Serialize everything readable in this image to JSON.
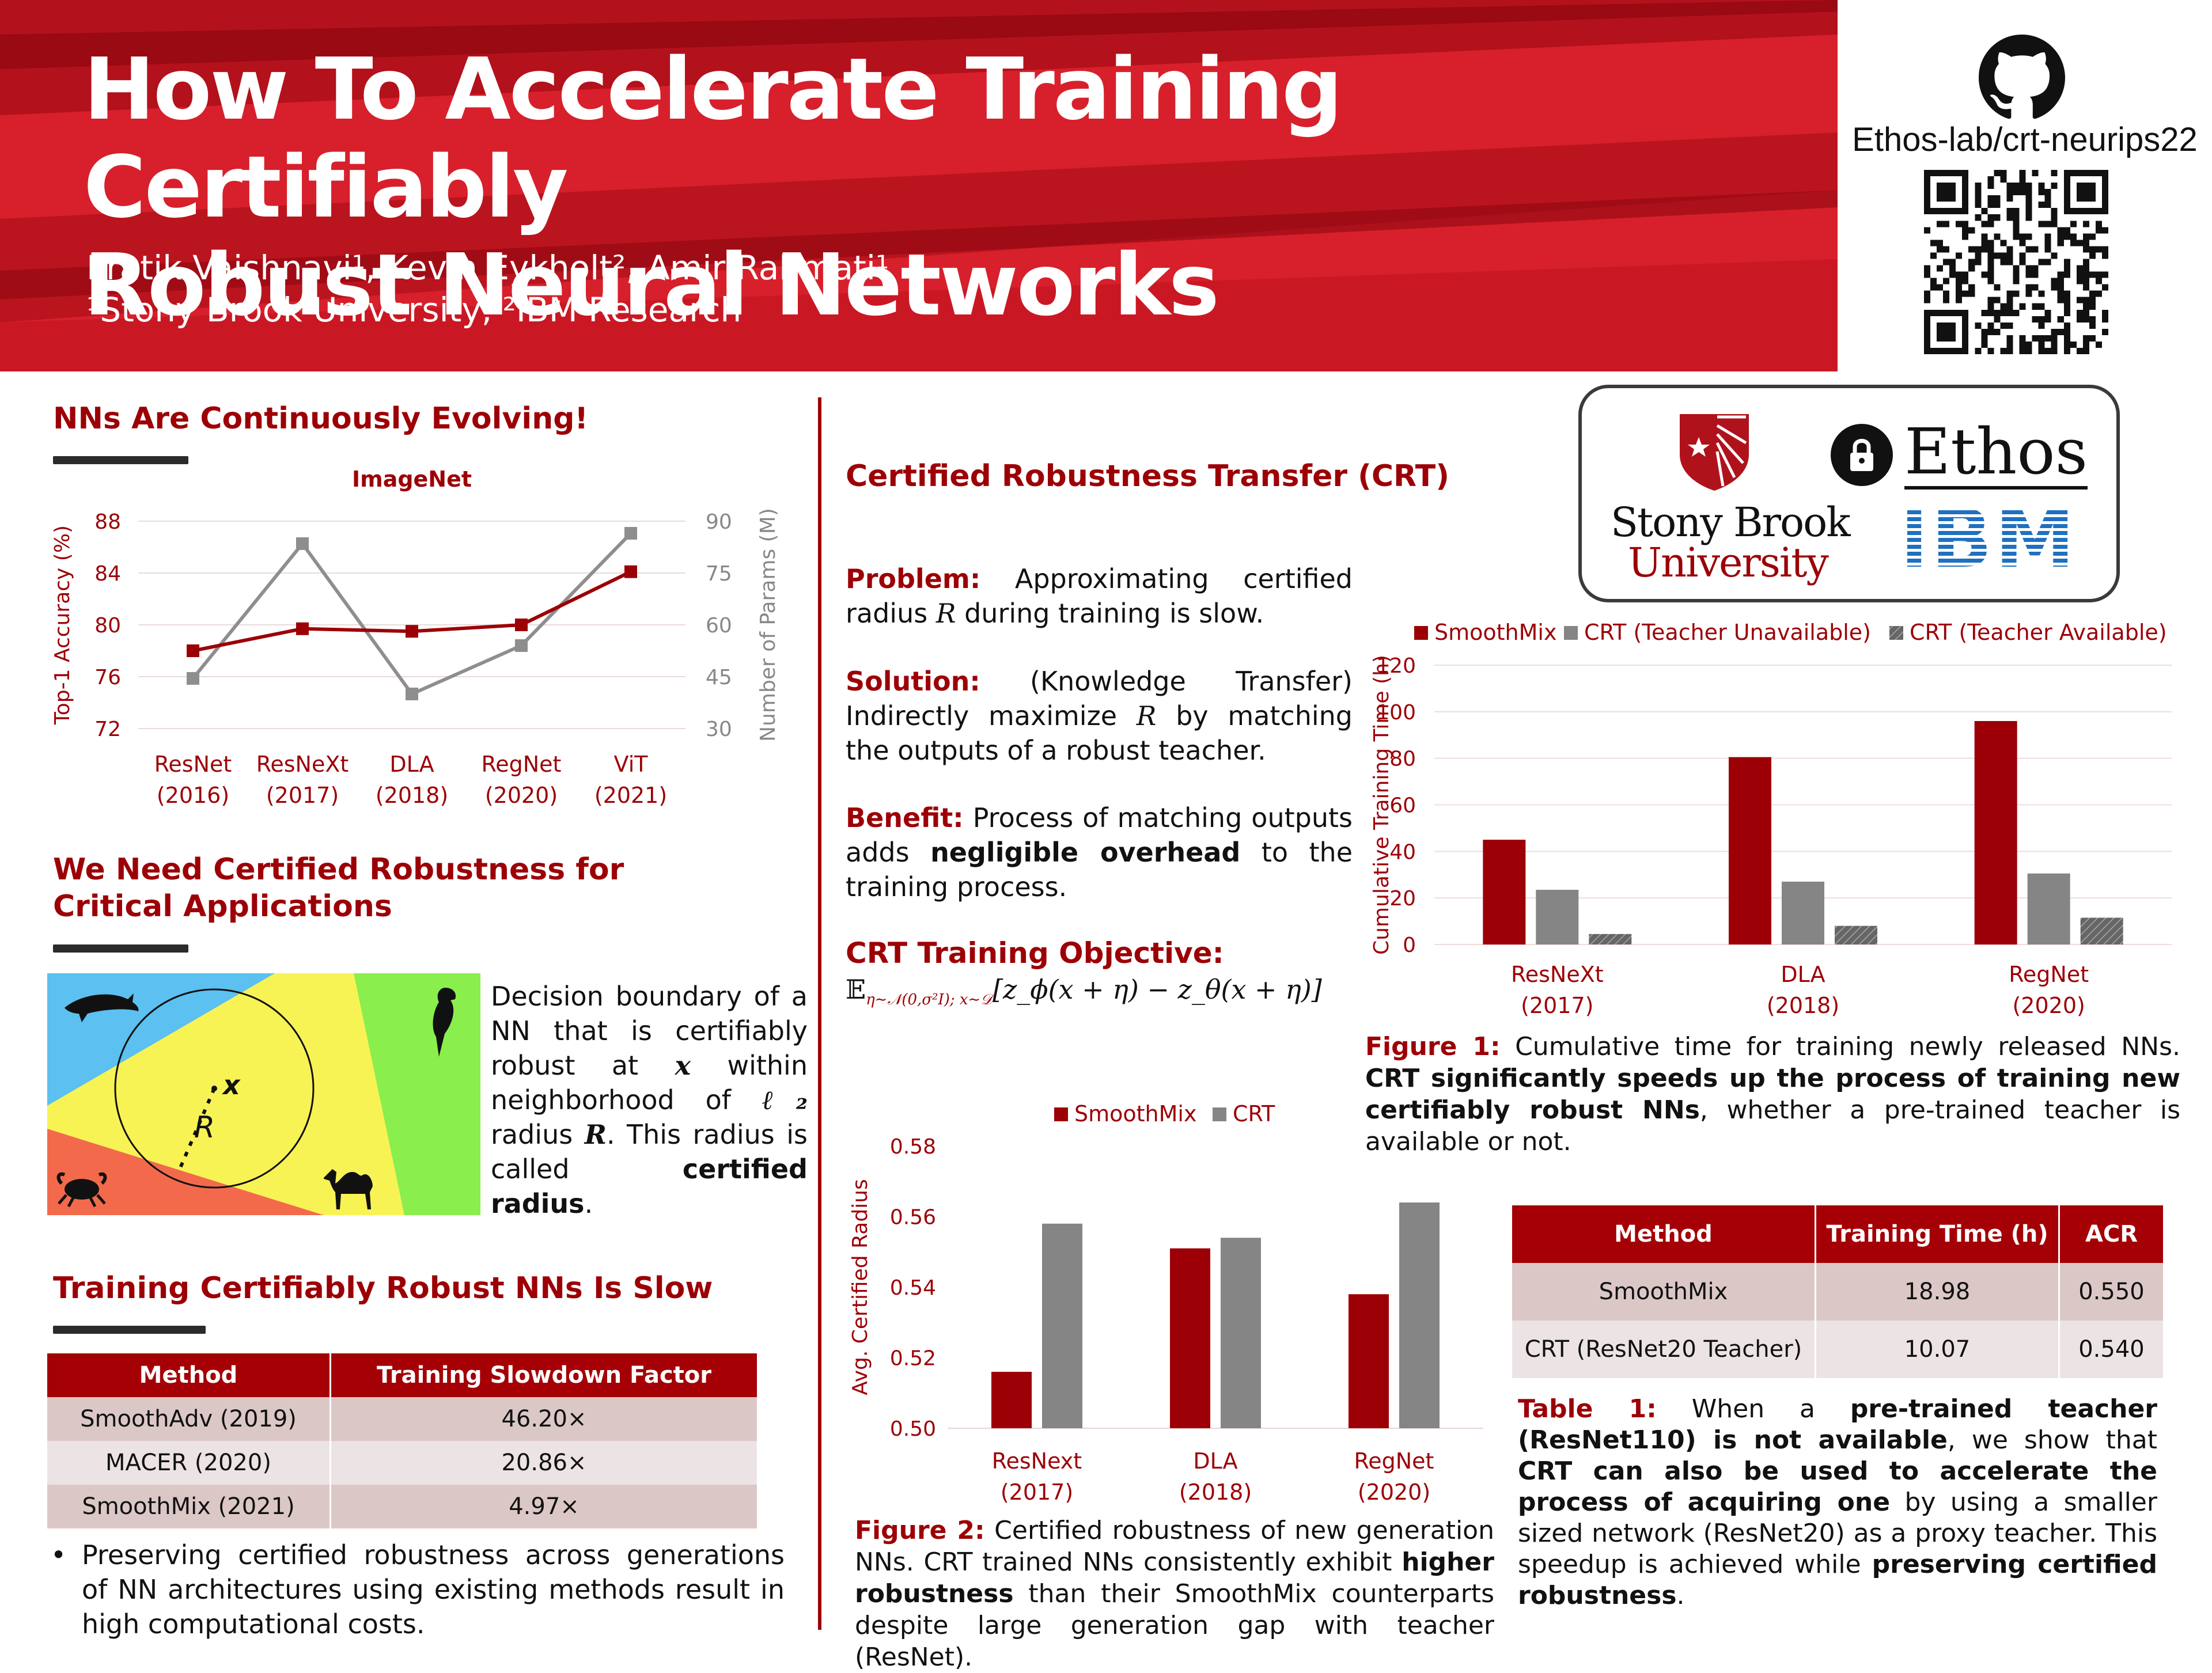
{
  "header": {
    "title_line1": "How To Accelerate Training Certifiably",
    "title_line2": "Robust Neural Networks",
    "authors": "Pratik Vaishnavi¹, Kevin Eykholt², Amir Rahmati¹",
    "affiliations": "¹Stony Brook University, ²IBM Research",
    "repo": "Ethos-lab/crt-neurips22"
  },
  "logos": {
    "stony_brook_line1": "Stony Brook",
    "stony_brook_line2": "University",
    "ethos": "Ethos",
    "ibm": "IBM"
  },
  "colors": {
    "brand_red": "#9c0006",
    "bar_red": "#9c0006",
    "bar_gray": "#858585",
    "dark_gray": "#555555"
  },
  "sec1": {
    "heading": "NNs Are Continuously Evolving!"
  },
  "sec2": {
    "heading_line1": "We Need Certified Robustness for",
    "heading_line2": "Critical Applications",
    "illus_R": "R",
    "illus_x": "x",
    "text_pre": "Decision boundary of a NN that is certifiably robust at",
    "text_x": "x",
    "text_mid": "within neighborhood of",
    "text_l2": "ℓ₂",
    "text_mid2": "radius",
    "text_R": "R",
    "text_post": ". This radius is called",
    "text_bold": "certified radius",
    "text_end": "."
  },
  "sec3": {
    "heading": "Training Certifiably Robust NNs Is Slow",
    "table": {
      "headers": [
        "Method",
        "Training Slowdown Factor"
      ],
      "rows": [
        [
          "SmoothAdv (2019)",
          "46.20×"
        ],
        [
          "MACER (2020)",
          "20.86×"
        ],
        [
          "SmoothMix (2021)",
          "4.97×"
        ]
      ]
    },
    "bullet": "Preserving certified robustness across generations of NN architectures using existing methods result in high computational costs."
  },
  "crt": {
    "heading": "Certified Robustness Transfer (CRT)",
    "problem_label": "Problem:",
    "problem_pre": "Approximating certified radius",
    "problem_R": "R",
    "problem_post": "during training is slow.",
    "solution_label": "Solution:",
    "solution_pre": "(Knowledge Transfer) Indirectly maximize",
    "solution_R": "R",
    "solution_post": "by matching the outputs of a robust teacher.",
    "benefit_label": "Benefit:",
    "benefit_pre": "Process of matching outputs adds",
    "benefit_bold": "negligible overhead",
    "benefit_post": "to the training process.",
    "objective_label": "CRT Training Objective:",
    "objective_E": "𝔼",
    "objective_sub": "η∼𝒩(0,σ²I); x∼𝒟",
    "objective_body": "[z_ϕ(x + η) − z_θ(x + η)]"
  },
  "fig1": {
    "caption_label": "Figure 1:",
    "caption_pre": "Cumulative time for training newly released NNs.",
    "caption_bold": "CRT significantly speeds up the process of training new certifiably robust NNs",
    "caption_post": ", whether a pre-trained teacher is available or not."
  },
  "fig2": {
    "caption_label": "Figure 2:",
    "caption_pre": "Certified robustness of new generation NNs. CRT trained NNs consistently exhibit",
    "caption_bold": "higher robustness",
    "caption_post": "than their SmoothMix counterparts despite large generation gap with teacher (ResNet)."
  },
  "table1": {
    "headers": [
      "Method",
      "Training Time (h)",
      "ACR"
    ],
    "rows": [
      [
        "SmoothMix",
        "18.98",
        "0.550"
      ],
      [
        "CRT (ResNet20 Teacher)",
        "10.07",
        "0.540"
      ]
    ],
    "caption_label": "Table 1:",
    "caption_p1": "When a",
    "caption_b1": "pre-trained teacher (ResNet110) is not available",
    "caption_p2": ", we show that",
    "caption_b2": "CRT can also be used to accelerate the process of acquiring one",
    "caption_p3": "by using a smaller sized network (ResNet20) as a proxy teacher. This speedup is achieved while",
    "caption_b3": "preserving certified robustness",
    "caption_p4": "."
  },
  "chart_data": [
    {
      "type": "line",
      "title": "ImageNet",
      "categories": [
        "ResNet (2016)",
        "ResNeXt (2017)",
        "DLA (2018)",
        "RegNet (2020)",
        "ViT (2021)"
      ],
      "category_lines": [
        [
          "ResNet",
          "(2016)"
        ],
        [
          "ResNeXt",
          "(2017)"
        ],
        [
          "DLA",
          "(2018)"
        ],
        [
          "RegNet",
          "(2020)"
        ],
        [
          "ViT",
          "(2021)"
        ]
      ],
      "ylabel": "Top-1 Accuracy (%)",
      "ylabel_right": "Number of Params (M)",
      "ylim": [
        72,
        88
      ],
      "yticks": [
        72,
        76,
        80,
        84,
        88
      ],
      "ylim_right": [
        30,
        90
      ],
      "yticks_right": [
        30,
        45,
        60,
        75,
        90
      ],
      "series": [
        {
          "axis": "left",
          "values": [
            78.0,
            79.7,
            79.5,
            80.0,
            84.1
          ]
        },
        {
          "axis": "right",
          "values": [
            44.5,
            83.5,
            40.0,
            54.0,
            86.5
          ]
        }
      ],
      "grid": true
    },
    {
      "type": "bar",
      "categories": [
        "ResNeXt (2017)",
        "DLA (2018)",
        "RegNet (2020)"
      ],
      "category_lines": [
        [
          "ResNeXt",
          "(2017)"
        ],
        [
          "DLA",
          "(2018)"
        ],
        [
          "RegNet",
          "(2020)"
        ]
      ],
      "ylabel": "Cumulative Training Time (h)",
      "ylim": [
        0,
        120
      ],
      "yticks": [
        0,
        20,
        40,
        60,
        80,
        100,
        120
      ],
      "series": [
        {
          "name": "SmoothMix",
          "values": [
            45,
            80.5,
            96
          ]
        },
        {
          "name": "CRT (Teacher Unavailable)",
          "values": [
            23.5,
            27,
            30.5
          ]
        },
        {
          "name": "CRT (Teacher Available)",
          "values": [
            4.5,
            8,
            11.5
          ]
        }
      ],
      "legend": "top",
      "grid": true
    },
    {
      "type": "bar",
      "categories": [
        "ResNext (2017)",
        "DLA (2018)",
        "RegNet (2020)"
      ],
      "category_lines": [
        [
          "ResNext",
          "(2017)"
        ],
        [
          "DLA",
          "(2018)"
        ],
        [
          "RegNet",
          "(2020)"
        ]
      ],
      "ylabel": "Avg. Certified Radius",
      "ylim": [
        0.5,
        0.58
      ],
      "yticks": [
        "0.50",
        "0.52",
        "0.54",
        "0.56",
        "0.58"
      ],
      "series": [
        {
          "name": "SmoothMix",
          "values": [
            0.516,
            0.551,
            0.538
          ]
        },
        {
          "name": "CRT",
          "values": [
            0.558,
            0.554,
            0.564
          ]
        }
      ],
      "legend": "top",
      "grid": false
    }
  ]
}
